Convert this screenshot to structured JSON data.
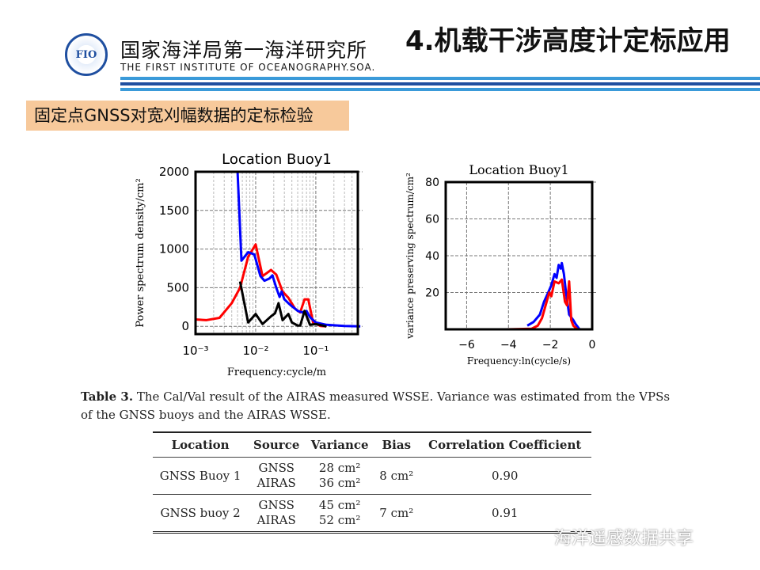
{
  "header": {
    "logo_text": "FIO",
    "org_cn": "国家海洋局第一海洋研究所",
    "org_en": "THE FIRST INSTITUTE OF OCEANOGRAPHY.SOA.",
    "title": "4.机载干涉高度计定标应用",
    "stripe_colors": [
      "#3a9ad9",
      "#1f4fa0",
      "#3a9ad9"
    ]
  },
  "subtitle": "固定点GNSS对宽刈幅数据的定标检验",
  "chart_data": [
    {
      "type": "line",
      "title": "Location Buoy1",
      "xlabel": "Frequency:cycle/m",
      "ylabel": "Power spectrum density/cm²",
      "xscale": "log",
      "xlim": [
        0.001,
        0.5
      ],
      "ylim": [
        -100,
        2000
      ],
      "grid": true,
      "xticks": [
        "10⁻³",
        "10⁻²",
        "10⁻¹"
      ],
      "yticks": [
        "0",
        "500",
        "1000",
        "1500",
        "2000"
      ],
      "series": [
        {
          "color": "#ff0000",
          "x": [
            0.001,
            0.0015,
            0.0025,
            0.004,
            0.0055,
            0.0075,
            0.01,
            0.013,
            0.018,
            0.022,
            0.028,
            0.035,
            0.045,
            0.055,
            0.065,
            0.075,
            0.09,
            0.12,
            0.15
          ],
          "y": [
            90,
            80,
            110,
            300,
            500,
            900,
            1060,
            650,
            730,
            670,
            450,
            370,
            230,
            180,
            350,
            350,
            50,
            5,
            0
          ]
        },
        {
          "color": "#0000ff",
          "x": [
            0.005,
            0.0058,
            0.0075,
            0.0095,
            0.012,
            0.014,
            0.017,
            0.019,
            0.022,
            0.025,
            0.027,
            0.03,
            0.035,
            0.04,
            0.045,
            0.05,
            0.06,
            0.07,
            0.08,
            0.1,
            0.15,
            0.3,
            0.55
          ],
          "y": [
            2000,
            850,
            960,
            930,
            650,
            590,
            620,
            660,
            500,
            380,
            450,
            350,
            300,
            260,
            230,
            200,
            180,
            200,
            120,
            50,
            20,
            5,
            0
          ]
        },
        {
          "color": "#000000",
          "x": [
            0.0055,
            0.0075,
            0.01,
            0.013,
            0.018,
            0.021,
            0.024,
            0.028,
            0.035,
            0.04,
            0.05,
            0.055,
            0.065,
            0.08,
            0.1,
            0.15
          ],
          "y": [
            580,
            50,
            160,
            30,
            130,
            170,
            300,
            80,
            160,
            50,
            10,
            10,
            200,
            20,
            30,
            0
          ]
        }
      ]
    },
    {
      "type": "line",
      "title": "Location Buoy1",
      "xlabel": "Frequency:ln(cycle/s)",
      "ylabel": "variance preserving spectrum/cm²",
      "xlim": [
        -7,
        0
      ],
      "ylim": [
        0,
        80
      ],
      "grid": true,
      "xticks": [
        "−6",
        "−4",
        "−2",
        "0"
      ],
      "yticks": [
        "20",
        "40",
        "60",
        "80"
      ],
      "series": [
        {
          "color": "#0000ff",
          "x": [
            -3.1,
            -2.8,
            -2.5,
            -2.3,
            -2.1,
            -1.95,
            -1.8,
            -1.7,
            -1.6,
            -1.5,
            -1.45,
            -1.35,
            -1.25,
            -1.1,
            -0.9,
            -0.8,
            -0.6,
            -0.4
          ],
          "y": [
            2,
            4,
            8,
            15,
            20,
            24,
            30,
            28,
            35,
            33,
            36,
            30,
            20,
            8,
            5,
            3,
            0,
            0
          ]
        },
        {
          "color": "#ff0000",
          "x": [
            -4.1,
            -2.9,
            -2.6,
            -2.4,
            -2.2,
            -2.05,
            -1.95,
            -1.8,
            -1.6,
            -1.45,
            -1.3,
            -1.2,
            -1.1,
            -1.0,
            -0.9,
            -0.7,
            0
          ],
          "y": [
            0,
            0.3,
            2,
            6,
            14,
            20,
            18,
            26,
            25,
            27,
            15,
            13,
            26,
            5,
            2,
            0,
            0
          ]
        }
      ]
    }
  ],
  "caption": {
    "label": "Table 3.",
    "text": " The Cal/Val result of the AIRAS measured WSSE. Variance was estimated from the VPSs of the GNSS buoys and the AIRAS WSSE."
  },
  "table": {
    "headers": [
      "Location",
      "Source",
      "Variance",
      "Bias",
      "Correlation Coefficient"
    ],
    "rows": [
      {
        "location": "GNSS Buoy 1",
        "source": [
          "GNSS",
          "AIRAS"
        ],
        "variance": [
          "28 cm²",
          "36 cm²"
        ],
        "bias": "8 cm²",
        "corr": "0.90"
      },
      {
        "location": "GNSS buoy 2",
        "source": [
          "GNSS",
          "AIRAS"
        ],
        "variance": [
          "45 cm²",
          "52 cm²"
        ],
        "bias": "7 cm²",
        "corr": "0.91"
      }
    ]
  },
  "watermark": "海洋遥感数据共享"
}
